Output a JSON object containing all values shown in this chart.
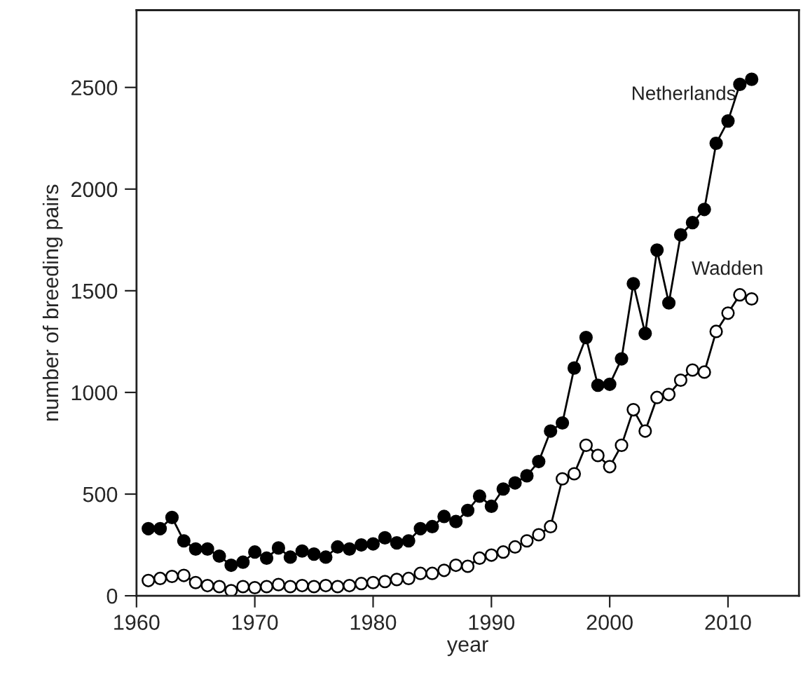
{
  "chart_data": {
    "type": "line",
    "xlabel": "year",
    "ylabel": "number of breeding pairs",
    "x": [
      1961,
      1962,
      1963,
      1964,
      1965,
      1966,
      1967,
      1968,
      1969,
      1970,
      1971,
      1972,
      1973,
      1974,
      1975,
      1976,
      1977,
      1978,
      1979,
      1980,
      1981,
      1982,
      1983,
      1984,
      1985,
      1986,
      1987,
      1988,
      1989,
      1990,
      1991,
      1992,
      1993,
      1994,
      1995,
      1996,
      1997,
      1998,
      1999,
      2000,
      2001,
      2002,
      2003,
      2004,
      2005,
      2006,
      2007,
      2008,
      2009,
      2010,
      2011,
      2012
    ],
    "series": [
      {
        "name": "Netherlands",
        "color": "#000000",
        "marker": "circle",
        "values": [
          330,
          330,
          385,
          270,
          230,
          230,
          195,
          150,
          165,
          215,
          185,
          235,
          190,
          220,
          205,
          190,
          240,
          230,
          250,
          255,
          285,
          260,
          270,
          330,
          340,
          390,
          365,
          420,
          490,
          440,
          525,
          555,
          590,
          660,
          810,
          850,
          1120,
          1270,
          1035,
          1040,
          1165,
          1535,
          1290,
          1700,
          1440,
          1775,
          1835,
          1900,
          2225,
          2335,
          2515,
          2540
        ]
      },
      {
        "name": "Wadden",
        "color": "#000000",
        "marker": "circle",
        "values": [
          75,
          85,
          95,
          100,
          65,
          50,
          45,
          25,
          45,
          40,
          45,
          55,
          45,
          50,
          45,
          50,
          45,
          50,
          60,
          65,
          70,
          80,
          85,
          110,
          110,
          125,
          150,
          145,
          185,
          200,
          215,
          240,
          270,
          300,
          340,
          575,
          600,
          740,
          690,
          635,
          740,
          915,
          810,
          975,
          990,
          1060,
          1110,
          1100,
          1300,
          1390,
          1480,
          1460
        ]
      }
    ],
    "xlim": [
      1960,
      2016
    ],
    "ylim": [
      0,
      2880
    ],
    "xticks": [
      1960,
      1970,
      1980,
      1990,
      2000,
      2010
    ],
    "yticks": [
      0,
      500,
      1000,
      1500,
      2000,
      2500
    ],
    "grid": false,
    "legend": false,
    "line_style": "solid"
  }
}
